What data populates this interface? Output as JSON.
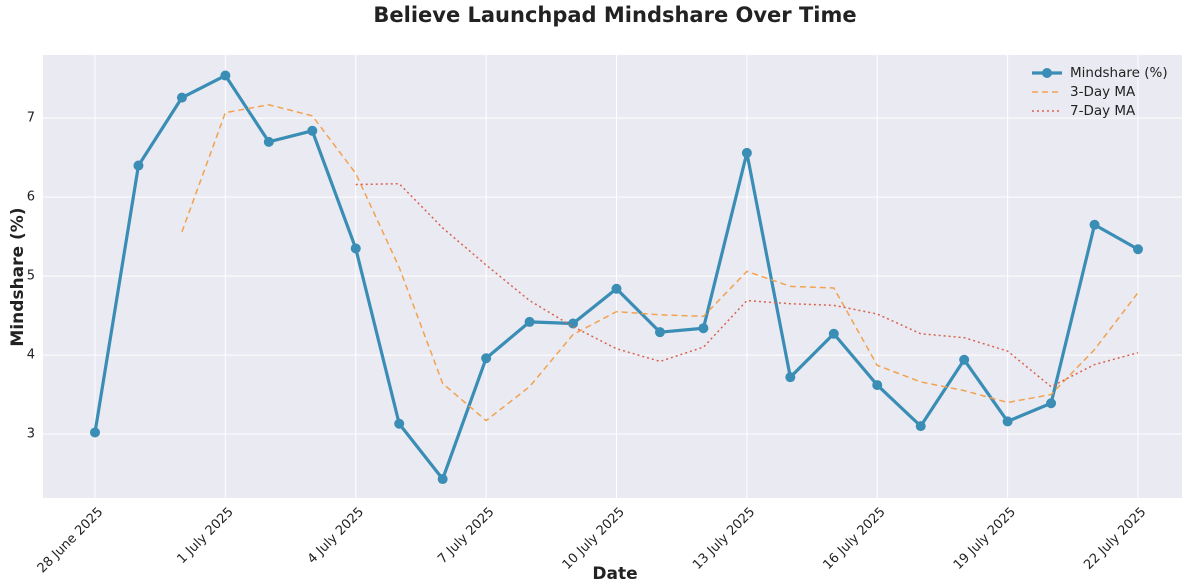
{
  "chart_data": {
    "type": "line",
    "title": "Believe Launchpad Mindshare Over Time",
    "x_label": "Date",
    "y_label": "Mindshare (%)",
    "categories": [
      "28 June 2025",
      null,
      null,
      "1 July 2025",
      null,
      null,
      "4 July 2025",
      null,
      null,
      "7 July 2025",
      null,
      null,
      "10 July 2025",
      null,
      null,
      "13 July 2025",
      null,
      null,
      "16 July 2025",
      null,
      null,
      "19 July 2025",
      null,
      null,
      "22 July 2025"
    ],
    "series": [
      {
        "name": "Mindshare (%)",
        "color": "#3a8db5",
        "style": "solid",
        "marker": true,
        "values": [
          3.02,
          6.4,
          7.26,
          7.54,
          6.7,
          6.84,
          5.35,
          3.13,
          2.43,
          3.96,
          4.42,
          4.4,
          4.84,
          4.29,
          4.34,
          6.56,
          3.72,
          4.27,
          3.62,
          3.1,
          3.94,
          3.16,
          3.39,
          5.65,
          5.34
        ]
      },
      {
        "name": "3-Day MA",
        "color": "#f2a24f",
        "style": "dashed",
        "marker": false,
        "values": [
          null,
          null,
          5.56,
          7.07,
          7.17,
          7.03,
          6.3,
          5.11,
          3.64,
          3.17,
          3.6,
          4.26,
          4.55,
          4.51,
          4.49,
          5.06,
          4.87,
          4.85,
          3.87,
          3.66,
          3.55,
          3.4,
          3.5,
          4.07,
          4.79
        ]
      },
      {
        "name": "7-Day MA",
        "color": "#d9634f",
        "style": "dotted",
        "marker": false,
        "values": [
          null,
          null,
          null,
          null,
          null,
          null,
          6.16,
          6.17,
          5.61,
          5.14,
          4.69,
          4.36,
          4.08,
          3.92,
          4.1,
          4.69,
          4.65,
          4.63,
          4.52,
          4.27,
          4.22,
          4.05,
          3.6,
          3.88,
          4.03
        ]
      }
    ],
    "ylim": [
      2.19,
      7.8
    ],
    "yticks": [
      3,
      4,
      5,
      6,
      7
    ],
    "grid": true,
    "legend": "upper right"
  }
}
